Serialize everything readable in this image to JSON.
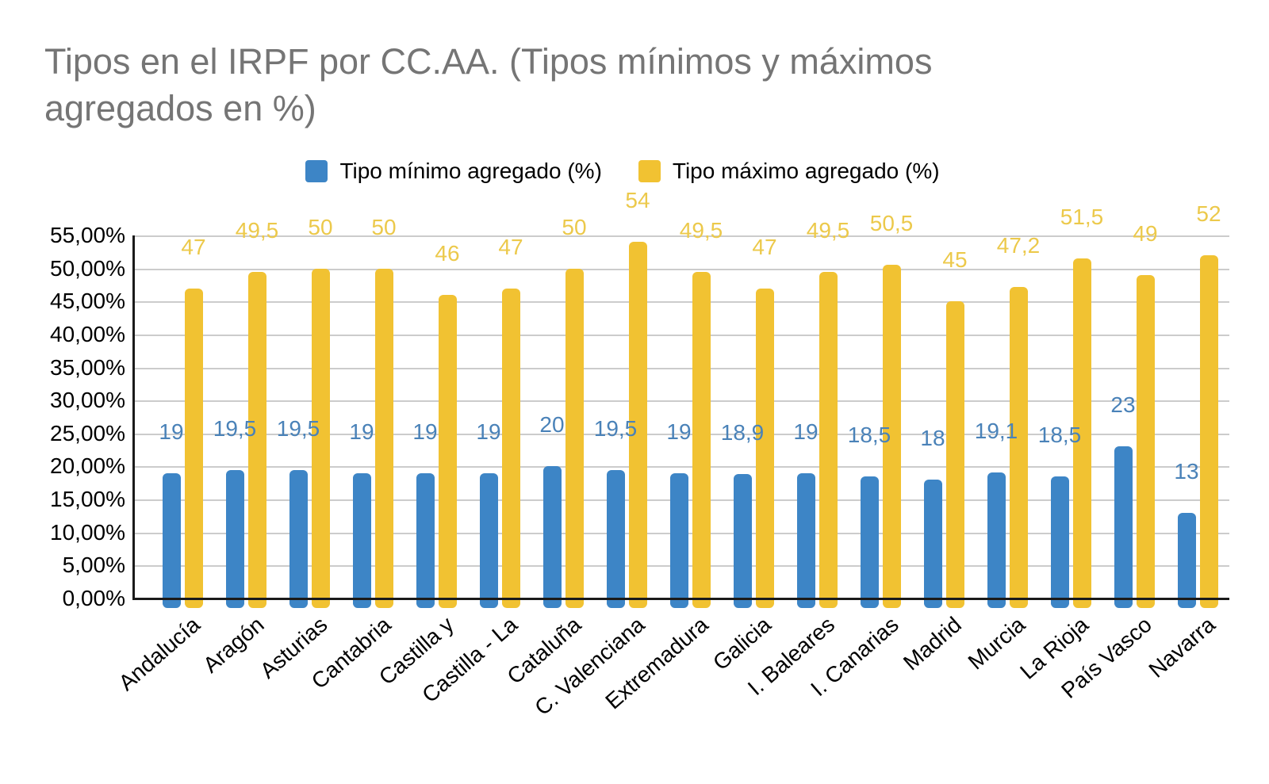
{
  "title": "Tipos en el IRPF por CC.AA. (Tipos mínimos y máximos\nagregados en %)",
  "colors": {
    "title_text": "#757575",
    "axis_text": "#000000",
    "gridline": "#cccccc",
    "axis_line": "#1a1a1a",
    "series_min": "#3d85c6",
    "series_max": "#f1c232",
    "min_label_text": "#4a82b8",
    "max_label_text": "#ecc94b"
  },
  "chart_data": {
    "type": "bar",
    "title": "Tipos en el IRPF por CC.AA. (Tipos mínimos y máximos agregados en %)",
    "legend_position": "top",
    "grid": true,
    "categories": [
      "Andalucía",
      "Aragón",
      "Asturias",
      "Cantabria",
      "Castilla y",
      "Castilla - La",
      "Cataluña",
      "C. Valenciana",
      "Extremadura",
      "Galicia",
      "I. Baleares",
      "I. Canarias",
      "Madrid",
      "Murcia",
      "La Rioja",
      "País Vasco",
      "Navarra"
    ],
    "series": [
      {
        "name": "Tipo mínimo agregado (%)",
        "color": "#3d85c6",
        "values": [
          19,
          19.5,
          19.5,
          19,
          19,
          19,
          20,
          19.5,
          19,
          18.9,
          19,
          18.5,
          18,
          19.1,
          18.5,
          23,
          13
        ],
        "labels": [
          "19",
          "19,5",
          "19,5",
          "19",
          "19",
          "19",
          "20",
          "19,5",
          "19",
          "18,9",
          "19",
          "18,5",
          "18",
          "19,1",
          "18,5",
          "23",
          "13"
        ]
      },
      {
        "name": "Tipo máximo agregado (%)",
        "color": "#f1c232",
        "values": [
          47,
          49.5,
          50,
          50,
          46,
          47,
          50,
          54,
          49.5,
          47,
          49.5,
          50.5,
          45,
          47.2,
          51.5,
          49,
          52
        ],
        "labels": [
          "47",
          "49,5",
          "50",
          "50",
          "46",
          "47",
          "50",
          "54",
          "49,5",
          "47",
          "49,5",
          "50,5",
          "45",
          "47,2",
          "51,5",
          "49",
          "52"
        ]
      }
    ],
    "y_axis": {
      "min": 0,
      "max": 55,
      "step": 5,
      "tick_labels": [
        "55,00%",
        "50,00%",
        "45,00%",
        "40,00%",
        "35,00%",
        "30,00%",
        "25,00%",
        "20,00%",
        "15,00%",
        "10,00%",
        "5,00%",
        "0,00%"
      ]
    }
  }
}
